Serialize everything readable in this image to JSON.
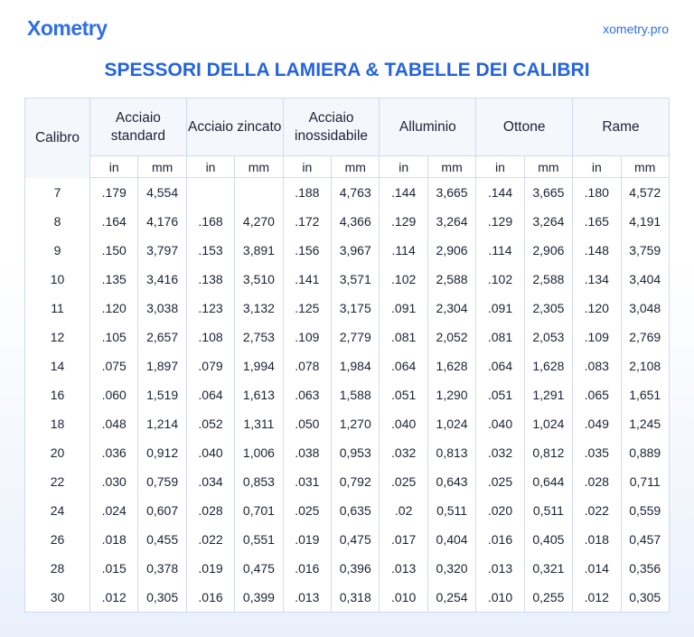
{
  "header": {
    "logo": "Xometry",
    "site": "xometry.pro",
    "title": "SPESSORI DELLA LAMIERA & TABELLE DEI CALIBRI"
  },
  "table": {
    "first_header": "Calibro",
    "groups": [
      "Acciaio standard",
      "Acciaio zincato",
      "Acciaio inossidabile",
      "Alluminio",
      "Ottone",
      "Rame"
    ],
    "units": [
      "in",
      "mm",
      "in",
      "mm",
      "in",
      "mm",
      "in",
      "mm",
      "in",
      "mm",
      "in",
      "mm"
    ],
    "rows": [
      [
        "7",
        ".179",
        "4,554",
        null,
        null,
        ".188",
        "4,763",
        ".144",
        "3,665",
        ".144",
        "3,665",
        ".180",
        "4,572"
      ],
      [
        "8",
        ".164",
        "4,176",
        ".168",
        "4,270",
        ".172",
        "4,366",
        ".129",
        "3,264",
        ".129",
        "3,264",
        ".165",
        "4,191"
      ],
      [
        "9",
        ".150",
        "3,797",
        ".153",
        "3,891",
        ".156",
        "3,967",
        ".114",
        "2,906",
        ".114",
        "2,906",
        ".148",
        "3,759"
      ],
      [
        "10",
        ".135",
        "3,416",
        ".138",
        "3,510",
        ".141",
        "3,571",
        ".102",
        "2,588",
        ".102",
        "2,588",
        ".134",
        "3,404"
      ],
      [
        "11",
        ".120",
        "3,038",
        ".123",
        "3,132",
        ".125",
        "3,175",
        ".091",
        "2,304",
        ".091",
        "2,305",
        ".120",
        "3,048"
      ],
      [
        "12",
        ".105",
        "2,657",
        ".108",
        "2,753",
        ".109",
        "2,779",
        ".081",
        "2,052",
        ".081",
        "2,053",
        ".109",
        "2,769"
      ],
      [
        "14",
        ".075",
        "1,897",
        ".079",
        "1,994",
        ".078",
        "1,984",
        ".064",
        "1,628",
        ".064",
        "1,628",
        ".083",
        "2,108"
      ],
      [
        "16",
        ".060",
        "1,519",
        ".064",
        "1,613",
        ".063",
        "1,588",
        ".051",
        "1,290",
        ".051",
        "1,291",
        ".065",
        "1,651"
      ],
      [
        "18",
        ".048",
        "1,214",
        ".052",
        "1,311",
        ".050",
        "1,270",
        ".040",
        "1,024",
        ".040",
        "1,024",
        ".049",
        "1,245"
      ],
      [
        "20",
        ".036",
        "0,912",
        ".040",
        "1,006",
        ".038",
        "0,953",
        ".032",
        "0,813",
        ".032",
        "0,812",
        ".035",
        "0,889"
      ],
      [
        "22",
        ".030",
        "0,759",
        ".034",
        "0,853",
        ".031",
        "0,792",
        ".025",
        "0,643",
        ".025",
        "0,644",
        ".028",
        "0,711"
      ],
      [
        "24",
        ".024",
        "0,607",
        ".028",
        "0,701",
        ".025",
        "0,635",
        ".02",
        "0,511",
        ".020",
        "0,511",
        ".022",
        "0,559"
      ],
      [
        "26",
        ".018",
        "0,455",
        ".022",
        "0,551",
        ".019",
        "0,475",
        ".017",
        "0,404",
        ".016",
        "0,405",
        ".018",
        "0,457"
      ],
      [
        "28",
        ".015",
        "0,378",
        ".019",
        "0,475",
        ".016",
        "0,396",
        ".013",
        "0,320",
        ".013",
        "0,321",
        ".014",
        "0,356"
      ],
      [
        "30",
        ".012",
        "0,305",
        ".016",
        "0,399",
        ".013",
        "0,318",
        ".010",
        "0,254",
        ".010",
        "0,255",
        ".012",
        "0,305"
      ]
    ]
  }
}
